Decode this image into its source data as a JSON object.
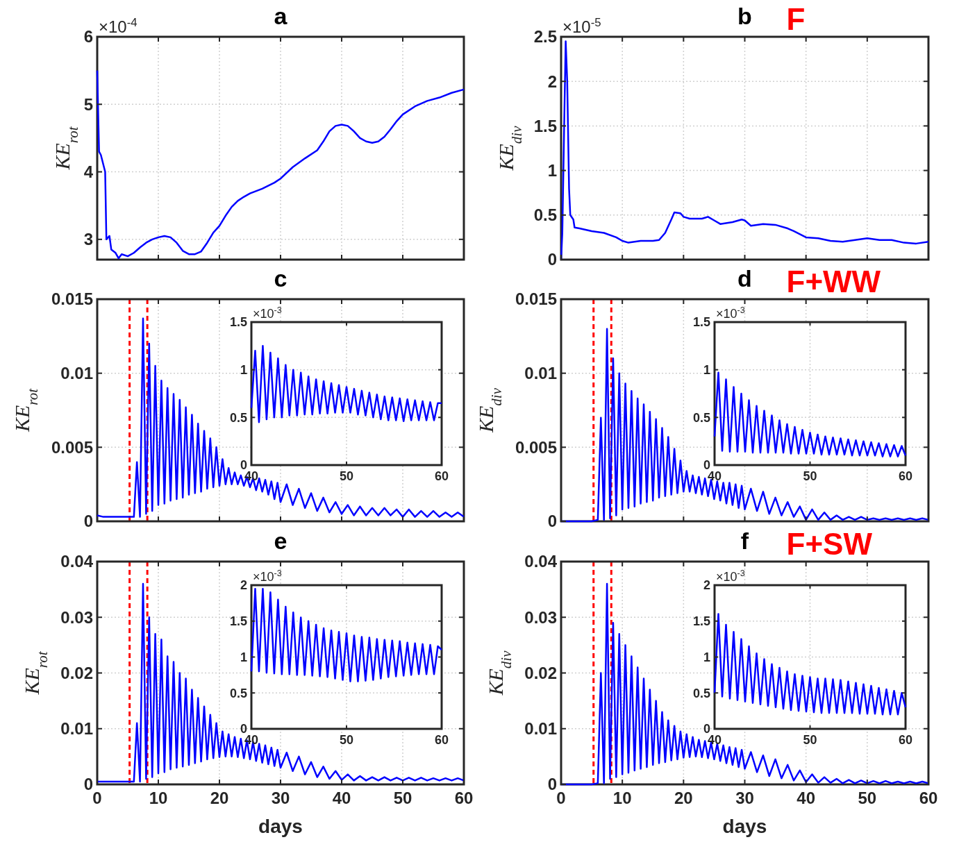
{
  "chart_data": [
    {
      "type": "line",
      "title": "a",
      "ylabel": "KE$_{rot}$",
      "annotations": [
        "×10$^{-4}$"
      ],
      "xlim": [
        0,
        60
      ],
      "xticks": [
        0,
        10,
        20,
        30,
        40,
        50,
        60
      ],
      "ylim": [
        2.7,
        6
      ],
      "yticks": [
        3,
        4,
        5,
        6
      ],
      "grid": true,
      "tick_labels": "y",
      "series": [
        {
          "color": "#0000ff",
          "x": [
            0,
            0.3,
            0.6,
            1.3,
            1.5,
            2,
            2.3,
            3,
            3.5,
            4,
            5,
            6,
            7,
            8,
            9,
            10,
            11,
            12,
            13,
            14,
            15,
            16,
            17,
            18,
            19,
            20,
            21,
            22,
            23,
            24,
            25,
            27,
            29,
            30,
            32,
            34,
            36,
            37,
            38,
            39,
            40,
            41,
            42,
            43,
            44,
            45,
            46,
            47,
            48,
            49,
            50,
            52,
            54,
            56,
            58,
            60
          ],
          "values": [
            5.5,
            4.3,
            4.25,
            4.0,
            3.0,
            3.05,
            2.85,
            2.8,
            2.72,
            2.78,
            2.75,
            2.8,
            2.88,
            2.95,
            3.0,
            3.03,
            3.05,
            3.03,
            2.95,
            2.83,
            2.78,
            2.78,
            2.82,
            2.95,
            3.1,
            3.2,
            3.35,
            3.48,
            3.57,
            3.63,
            3.68,
            3.75,
            3.84,
            3.9,
            4.07,
            4.2,
            4.32,
            4.45,
            4.6,
            4.68,
            4.7,
            4.68,
            4.6,
            4.5,
            4.45,
            4.43,
            4.45,
            4.52,
            4.63,
            4.75,
            4.85,
            4.97,
            5.05,
            5.1,
            5.17,
            5.22
          ]
        }
      ]
    },
    {
      "type": "line",
      "title": "b",
      "subtitle": "F",
      "ylabel": "KE$_{div}$",
      "annotations": [
        "×10$^{-5}$"
      ],
      "xlim": [
        0,
        60
      ],
      "xticks": [
        0,
        10,
        20,
        30,
        40,
        50,
        60
      ],
      "ylim": [
        0,
        2.5
      ],
      "yticks": [
        0,
        0.5,
        1,
        1.5,
        2,
        2.5
      ],
      "grid": true,
      "tick_labels": "y",
      "series": [
        {
          "color": "#0000ff",
          "x": [
            0,
            0.2,
            0.5,
            0.75,
            1,
            1.3,
            1.5,
            2,
            2.2,
            3,
            5,
            7,
            9,
            10,
            11,
            13,
            15,
            16,
            17,
            18,
            18.5,
            19.5,
            20,
            21,
            23,
            24,
            25,
            26,
            28,
            29.5,
            30,
            31,
            33,
            35,
            37,
            38,
            40,
            42,
            44,
            46,
            48,
            50,
            52,
            54,
            56,
            58,
            60
          ],
          "values": [
            0,
            0.3,
            1.5,
            2.45,
            2.0,
            0.8,
            0.5,
            0.45,
            0.36,
            0.35,
            0.32,
            0.3,
            0.25,
            0.21,
            0.19,
            0.21,
            0.21,
            0.22,
            0.3,
            0.45,
            0.53,
            0.52,
            0.48,
            0.46,
            0.46,
            0.48,
            0.44,
            0.4,
            0.42,
            0.45,
            0.44,
            0.38,
            0.4,
            0.39,
            0.35,
            0.32,
            0.25,
            0.24,
            0.21,
            0.2,
            0.22,
            0.24,
            0.22,
            0.22,
            0.19,
            0.18,
            0.2
          ]
        }
      ]
    },
    {
      "type": "line",
      "title": "c",
      "ylabel": "KE$_{rot}$",
      "xlim": [
        0,
        60
      ],
      "xticks": [
        0,
        10,
        20,
        30,
        40,
        50,
        60
      ],
      "ylim": [
        0,
        0.015
      ],
      "yticks": [
        0,
        0.005,
        0.01,
        0.015
      ],
      "grid": true,
      "tick_labels": "y",
      "ref_lines": [
        {
          "axis": "x",
          "value": 5.3,
          "color": "#ff0000",
          "line_style": "dashed"
        },
        {
          "axis": "x",
          "value": 8.2,
          "color": "#ff0000",
          "line_style": "dashed"
        }
      ],
      "x": [
        0,
        1,
        2,
        3,
        4,
        5,
        6,
        6.5,
        7,
        7.5,
        8,
        8.5,
        9,
        9.5,
        10,
        10.5,
        11,
        11.5,
        12,
        12.5,
        13,
        13.5,
        14,
        14.5,
        15,
        15.5,
        16,
        16.5,
        17,
        17.5,
        18,
        18.5,
        19,
        19.5,
        20,
        20.5,
        21,
        21.5,
        22,
        22.5,
        23,
        23.5,
        24,
        24.5,
        25,
        25.5,
        26,
        26.5,
        27,
        27.5,
        28,
        28.5,
        29,
        29.5,
        30,
        31,
        32,
        33,
        34,
        35,
        36,
        37,
        38,
        39,
        40,
        41,
        42,
        43,
        44,
        45,
        46,
        47,
        48,
        49,
        50,
        51,
        52,
        53,
        54,
        55,
        56,
        57,
        58,
        59,
        60
      ],
      "series": [
        {
          "color": "#0000ff",
          "values": [
            0.0004,
            0.0003,
            0.0003,
            0.0003,
            0.0003,
            0.0003,
            0.0003,
            0.004,
            0.0003,
            0.0137,
            0.0005,
            0.012,
            0.0007,
            0.0105,
            0.0011,
            0.0095,
            0.0012,
            0.009,
            0.0014,
            0.0086,
            0.0015,
            0.0082,
            0.0016,
            0.0077,
            0.0018,
            0.0072,
            0.0019,
            0.0066,
            0.002,
            0.0061,
            0.0022,
            0.0056,
            0.0023,
            0.005,
            0.0024,
            0.0042,
            0.0025,
            0.0036,
            0.0025,
            0.0033,
            0.0025,
            0.0031,
            0.0024,
            0.003,
            0.0023,
            0.0029,
            0.0021,
            0.0029,
            0.002,
            0.0028,
            0.0018,
            0.0027,
            0.0015,
            0.0026,
            0.0013,
            0.0025,
            0.0011,
            0.0022,
            0.0009,
            0.0019,
            0.0007,
            0.0016,
            0.0006,
            0.0013,
            0.0005,
            0.0011,
            0.0004,
            0.001,
            0.0004,
            0.0009,
            0.0004,
            0.0009,
            0.0004,
            0.0008,
            0.0003,
            0.0008,
            0.0003,
            0.0007,
            0.0003,
            0.0007,
            0.0003,
            0.0006,
            0.0003,
            0.0006,
            0.0003
          ]
        }
      ]
    },
    {
      "type": "line",
      "annotations": [
        "×10$^{-3}$"
      ],
      "xlim": [
        40,
        60
      ],
      "xticks": [
        40,
        50,
        60
      ],
      "ylim": [
        0,
        1.5
      ],
      "yticks": [
        0,
        0.5,
        1,
        1.5
      ],
      "grid": true,
      "x": [
        40,
        40.4,
        40.8,
        41.2,
        41.6,
        42,
        42.4,
        42.8,
        43.2,
        43.6,
        44,
        44.4,
        44.8,
        45.2,
        45.6,
        46,
        46.4,
        46.8,
        47.2,
        47.6,
        48,
        48.4,
        48.8,
        49.2,
        49.6,
        50,
        50.4,
        50.8,
        51.2,
        51.6,
        52,
        52.4,
        52.8,
        53.2,
        53.6,
        54,
        54.4,
        54.8,
        55.2,
        55.6,
        56,
        56.4,
        56.8,
        57.2,
        57.6,
        58,
        58.4,
        58.8,
        59.2,
        59.6,
        60
      ],
      "series": [
        {
          "color": "#0000ff",
          "values": [
            0.6,
            1.2,
            0.45,
            1.25,
            0.48,
            1.18,
            0.5,
            1.12,
            0.5,
            1.05,
            0.52,
            1.0,
            0.52,
            0.97,
            0.53,
            0.93,
            0.53,
            0.9,
            0.54,
            0.88,
            0.54,
            0.86,
            0.55,
            0.84,
            0.55,
            0.82,
            0.55,
            0.8,
            0.53,
            0.78,
            0.52,
            0.76,
            0.5,
            0.74,
            0.48,
            0.72,
            0.47,
            0.71,
            0.47,
            0.7,
            0.46,
            0.69,
            0.47,
            0.68,
            0.47,
            0.67,
            0.47,
            0.66,
            0.47,
            0.65,
            0.65
          ]
        }
      ]
    },
    {
      "type": "line",
      "title": "d",
      "subtitle": "F+WW",
      "ylabel": "KE$_{div}$",
      "xlim": [
        0,
        60
      ],
      "xticks": [
        0,
        10,
        20,
        30,
        40,
        50,
        60
      ],
      "ylim": [
        0,
        0.015
      ],
      "yticks": [
        0,
        0.005,
        0.01,
        0.015
      ],
      "grid": true,
      "tick_labels": "y",
      "ref_lines": [
        {
          "axis": "x",
          "value": 5.3,
          "color": "#ff0000",
          "line_style": "dashed"
        },
        {
          "axis": "x",
          "value": 8.2,
          "color": "#ff0000",
          "line_style": "dashed"
        }
      ],
      "x": [
        0,
        1,
        2,
        3,
        4,
        5,
        6,
        6.5,
        7,
        7.5,
        8,
        8.5,
        9,
        9.5,
        10,
        10.5,
        11,
        11.5,
        12,
        12.5,
        13,
        13.5,
        14,
        14.5,
        15,
        15.5,
        16,
        16.5,
        17,
        17.5,
        18,
        18.5,
        19,
        19.5,
        20,
        20.5,
        21,
        21.5,
        22,
        22.5,
        23,
        23.5,
        24,
        24.5,
        25,
        25.5,
        26,
        26.5,
        27,
        27.5,
        28,
        28.5,
        29,
        29.5,
        30,
        31,
        32,
        33,
        34,
        35,
        36,
        37,
        38,
        39,
        40,
        41,
        42,
        43,
        44,
        45,
        46,
        47,
        48,
        49,
        50,
        51,
        52,
        53,
        54,
        55,
        56,
        57,
        58,
        59,
        60
      ],
      "series": [
        {
          "color": "#0000ff",
          "values": [
            0,
            0,
            0,
            0,
            0,
            0,
            0.0001,
            0.007,
            0.0001,
            0.013,
            0.0002,
            0.011,
            0.0004,
            0.01,
            0.0008,
            0.0093,
            0.0009,
            0.0088,
            0.001,
            0.0083,
            0.0012,
            0.0079,
            0.0013,
            0.0074,
            0.0014,
            0.0069,
            0.0016,
            0.0063,
            0.0017,
            0.0057,
            0.0018,
            0.0049,
            0.0019,
            0.0041,
            0.002,
            0.0034,
            0.002,
            0.0031,
            0.0019,
            0.003,
            0.0018,
            0.0029,
            0.0017,
            0.0028,
            0.0015,
            0.0027,
            0.0014,
            0.0026,
            0.0012,
            0.0026,
            0.0011,
            0.0025,
            0.0009,
            0.0024,
            0.0008,
            0.0022,
            0.0007,
            0.002,
            0.0005,
            0.0016,
            0.0004,
            0.0013,
            0.0003,
            0.001,
            0.0001,
            0.0008,
            0.0001,
            0.0006,
            0.0001,
            0.0004,
            0.0001,
            0.0003,
            0.0001,
            0.0003,
            0.0001,
            0.0002,
            0.0001,
            0.0002,
            0.0001,
            0.0002,
            0.0001,
            0.0002,
            0.0001,
            0.0002,
            0.0001
          ]
        }
      ]
    },
    {
      "type": "line",
      "annotations": [
        "×10$^{-3}$"
      ],
      "xlim": [
        40,
        60
      ],
      "xticks": [
        40,
        50,
        60
      ],
      "ylim": [
        0,
        1.5
      ],
      "yticks": [
        0,
        0.5,
        1,
        1.5
      ],
      "grid": true,
      "x": [
        40,
        40.4,
        40.8,
        41.2,
        41.6,
        42,
        42.4,
        42.8,
        43.2,
        43.6,
        44,
        44.4,
        44.8,
        45.2,
        45.6,
        46,
        46.4,
        46.8,
        47.2,
        47.6,
        48,
        48.4,
        48.8,
        49.2,
        49.6,
        50,
        50.4,
        50.8,
        51.2,
        51.6,
        52,
        52.4,
        52.8,
        53.2,
        53.6,
        54,
        54.4,
        54.8,
        55.2,
        55.6,
        56,
        56.4,
        56.8,
        57.2,
        57.6,
        58,
        58.4,
        58.8,
        59.2,
        59.6,
        60
      ],
      "series": [
        {
          "color": "#0000ff",
          "values": [
            0.3,
            0.97,
            0.15,
            0.9,
            0.14,
            0.82,
            0.14,
            0.75,
            0.14,
            0.68,
            0.13,
            0.62,
            0.13,
            0.57,
            0.13,
            0.52,
            0.13,
            0.47,
            0.13,
            0.43,
            0.12,
            0.4,
            0.12,
            0.37,
            0.12,
            0.34,
            0.12,
            0.32,
            0.11,
            0.3,
            0.11,
            0.29,
            0.11,
            0.28,
            0.11,
            0.27,
            0.1,
            0.26,
            0.1,
            0.25,
            0.1,
            0.24,
            0.1,
            0.23,
            0.09,
            0.22,
            0.09,
            0.21,
            0.09,
            0.2,
            0.1
          ]
        }
      ]
    },
    {
      "type": "line",
      "title": "e",
      "xlabel": "days",
      "ylabel": "KE$_{rot}$",
      "xlim": [
        0,
        60
      ],
      "xticks": [
        0,
        10,
        20,
        30,
        40,
        50,
        60
      ],
      "ylim": [
        0,
        0.04
      ],
      "yticks": [
        0,
        0.01,
        0.02,
        0.03,
        0.04
      ],
      "grid": true,
      "ref_lines": [
        {
          "axis": "x",
          "value": 5.3,
          "color": "#ff0000",
          "line_style": "dashed"
        },
        {
          "axis": "x",
          "value": 8.2,
          "color": "#ff0000",
          "line_style": "dashed"
        }
      ],
      "x": [
        0,
        1,
        2,
        3,
        4,
        5,
        6,
        6.5,
        7,
        7.5,
        8,
        8.5,
        9,
        9.5,
        10,
        10.5,
        11,
        11.5,
        12,
        12.5,
        13,
        13.5,
        14,
        14.5,
        15,
        15.5,
        16,
        16.5,
        17,
        17.5,
        18,
        18.5,
        19,
        19.5,
        20,
        20.5,
        21,
        21.5,
        22,
        22.5,
        23,
        23.5,
        24,
        24.5,
        25,
        25.5,
        26,
        26.5,
        27,
        27.5,
        28,
        28.5,
        29,
        29.5,
        30,
        31,
        32,
        33,
        34,
        35,
        36,
        37,
        38,
        39,
        40,
        41,
        42,
        43,
        44,
        45,
        46,
        47,
        48,
        49,
        50,
        51,
        52,
        53,
        54,
        55,
        56,
        57,
        58,
        59,
        60
      ],
      "series": [
        {
          "color": "#0000ff",
          "values": [
            0.0005,
            0.0005,
            0.0005,
            0.0005,
            0.0005,
            0.0005,
            0.0005,
            0.011,
            0.0005,
            0.036,
            0.001,
            0.03,
            0.0013,
            0.027,
            0.002,
            0.026,
            0.0022,
            0.023,
            0.0027,
            0.022,
            0.003,
            0.02,
            0.0032,
            0.019,
            0.0035,
            0.017,
            0.0038,
            0.0155,
            0.0041,
            0.014,
            0.0045,
            0.0125,
            0.0047,
            0.011,
            0.0049,
            0.0095,
            0.005,
            0.009,
            0.005,
            0.0085,
            0.0049,
            0.0082,
            0.0047,
            0.0079,
            0.0045,
            0.0076,
            0.0042,
            0.0073,
            0.0039,
            0.007,
            0.0036,
            0.0066,
            0.0033,
            0.0062,
            0.003,
            0.0057,
            0.0024,
            0.005,
            0.0018,
            0.004,
            0.0013,
            0.0032,
            0.001,
            0.0024,
            0.0008,
            0.0018,
            0.0007,
            0.0015,
            0.0007,
            0.0013,
            0.0007,
            0.0013,
            0.0007,
            0.0012,
            0.0007,
            0.0012,
            0.0007,
            0.0012,
            0.0007,
            0.0011,
            0.0007,
            0.0011,
            0.0007,
            0.0011,
            0.0007
          ]
        }
      ]
    },
    {
      "type": "line",
      "annotations": [
        "×10$^{-3}$"
      ],
      "xlim": [
        40,
        60
      ],
      "xticks": [
        40,
        50,
        60
      ],
      "ylim": [
        0,
        2
      ],
      "yticks": [
        0,
        0.5,
        1,
        1.5,
        2
      ],
      "grid": true,
      "x": [
        40,
        40.4,
        40.8,
        41.2,
        41.6,
        42,
        42.4,
        42.8,
        43.2,
        43.6,
        44,
        44.4,
        44.8,
        45.2,
        45.6,
        46,
        46.4,
        46.8,
        47.2,
        47.6,
        48,
        48.4,
        48.8,
        49.2,
        49.6,
        50,
        50.4,
        50.8,
        51.2,
        51.6,
        52,
        52.4,
        52.8,
        53.2,
        53.6,
        54,
        54.4,
        54.8,
        55.2,
        55.6,
        56,
        56.4,
        56.8,
        57.2,
        57.6,
        58,
        58.4,
        58.8,
        59.2,
        59.6,
        60
      ],
      "series": [
        {
          "color": "#0000ff",
          "values": [
            0.8,
            1.95,
            0.8,
            1.95,
            0.78,
            1.9,
            0.77,
            1.8,
            0.76,
            1.7,
            0.76,
            1.62,
            0.75,
            1.55,
            0.75,
            1.5,
            0.74,
            1.45,
            0.73,
            1.4,
            0.72,
            1.37,
            0.7,
            1.35,
            0.68,
            1.33,
            0.66,
            1.3,
            0.66,
            1.28,
            0.67,
            1.27,
            0.68,
            1.25,
            0.7,
            1.24,
            0.72,
            1.23,
            0.73,
            1.22,
            0.74,
            1.2,
            0.75,
            1.19,
            0.76,
            1.18,
            0.76,
            1.17,
            0.76,
            1.15,
            1.1
          ]
        }
      ]
    },
    {
      "type": "line",
      "title": "f",
      "subtitle": "F+SW",
      "xlabel": "days",
      "ylabel": "KE$_{div}$",
      "xlim": [
        0,
        60
      ],
      "xticks": [
        0,
        10,
        20,
        30,
        40,
        50,
        60
      ],
      "ylim": [
        0,
        0.04
      ],
      "yticks": [
        0,
        0.01,
        0.02,
        0.03,
        0.04
      ],
      "grid": true,
      "ref_lines": [
        {
          "axis": "x",
          "value": 5.3,
          "color": "#ff0000",
          "line_style": "dashed"
        },
        {
          "axis": "x",
          "value": 8.2,
          "color": "#ff0000",
          "line_style": "dashed"
        }
      ],
      "x": [
        0,
        1,
        2,
        3,
        4,
        5,
        6,
        6.5,
        7,
        7.5,
        8,
        8.5,
        9,
        9.5,
        10,
        10.5,
        11,
        11.5,
        12,
        12.5,
        13,
        13.5,
        14,
        14.5,
        15,
        15.5,
        16,
        16.5,
        17,
        17.5,
        18,
        18.5,
        19,
        19.5,
        20,
        20.5,
        21,
        21.5,
        22,
        22.5,
        23,
        23.5,
        24,
        24.5,
        25,
        25.5,
        26,
        26.5,
        27,
        27.5,
        28,
        28.5,
        29,
        29.5,
        30,
        31,
        32,
        33,
        34,
        35,
        36,
        37,
        38,
        39,
        40,
        41,
        42,
        43,
        44,
        45,
        46,
        47,
        48,
        49,
        50,
        51,
        52,
        53,
        54,
        55,
        56,
        57,
        58,
        59,
        60
      ],
      "series": [
        {
          "color": "#0000ff",
          "values": [
            0,
            0,
            0,
            0,
            0,
            0,
            0.0002,
            0.02,
            0.0002,
            0.036,
            0.001,
            0.029,
            0.0013,
            0.027,
            0.0018,
            0.025,
            0.0021,
            0.023,
            0.0025,
            0.021,
            0.0028,
            0.019,
            0.0031,
            0.017,
            0.0035,
            0.015,
            0.0038,
            0.013,
            0.004,
            0.0115,
            0.0043,
            0.0105,
            0.0045,
            0.0095,
            0.0048,
            0.009,
            0.0049,
            0.0085,
            0.005,
            0.008,
            0.0049,
            0.0078,
            0.0047,
            0.0075,
            0.0045,
            0.0073,
            0.0042,
            0.007,
            0.0038,
            0.0067,
            0.0035,
            0.0065,
            0.0031,
            0.0062,
            0.0028,
            0.0058,
            0.0022,
            0.0052,
            0.0015,
            0.0045,
            0.0011,
            0.0035,
            0.0007,
            0.0025,
            0.0004,
            0.0018,
            0.0003,
            0.0013,
            0.0003,
            0.001,
            0.0002,
            0.0008,
            0.0002,
            0.0007,
            0.0002,
            0.0006,
            0.0002,
            0.0006,
            0.0002,
            0.0005,
            0.0002,
            0.0005,
            0.0002,
            0.0005,
            0.0002
          ]
        }
      ]
    },
    {
      "type": "line",
      "annotations": [
        "×10$^{-3}$"
      ],
      "xlim": [
        40,
        60
      ],
      "xticks": [
        40,
        50,
        60
      ],
      "ylim": [
        0,
        2
      ],
      "yticks": [
        0,
        0.5,
        1,
        1.5,
        2
      ],
      "grid": true,
      "x": [
        40,
        40.4,
        40.8,
        41.2,
        41.6,
        42,
        42.4,
        42.8,
        43.2,
        43.6,
        44,
        44.4,
        44.8,
        45.2,
        45.6,
        46,
        46.4,
        46.8,
        47.2,
        47.6,
        48,
        48.4,
        48.8,
        49.2,
        49.6,
        50,
        50.4,
        50.8,
        51.2,
        51.6,
        52,
        52.4,
        52.8,
        53.2,
        53.6,
        54,
        54.4,
        54.8,
        55.2,
        55.6,
        56,
        56.4,
        56.8,
        57.2,
        57.6,
        58,
        58.4,
        58.8,
        59.2,
        59.6,
        60
      ],
      "series": [
        {
          "color": "#0000ff",
          "values": [
            0.5,
            1.6,
            0.45,
            1.45,
            0.42,
            1.35,
            0.4,
            1.25,
            0.38,
            1.15,
            0.36,
            1.05,
            0.34,
            0.97,
            0.32,
            0.9,
            0.3,
            0.85,
            0.28,
            0.8,
            0.26,
            0.76,
            0.25,
            0.74,
            0.24,
            0.72,
            0.23,
            0.7,
            0.22,
            0.7,
            0.22,
            0.69,
            0.22,
            0.68,
            0.22,
            0.66,
            0.22,
            0.64,
            0.21,
            0.62,
            0.21,
            0.6,
            0.21,
            0.57,
            0.2,
            0.55,
            0.2,
            0.53,
            0.2,
            0.5,
            0.3
          ]
        }
      ]
    }
  ]
}
